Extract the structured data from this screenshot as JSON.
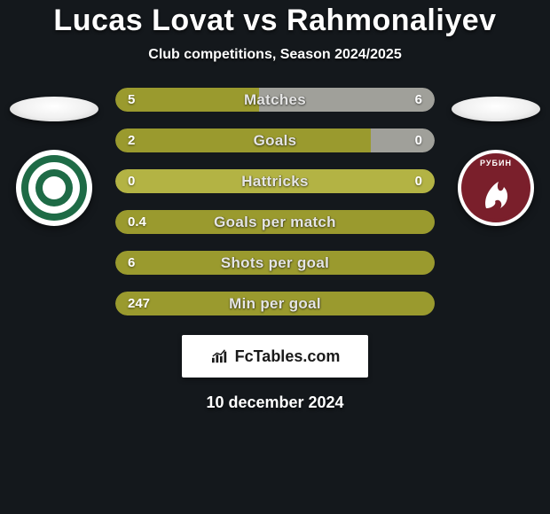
{
  "background_color": "#14181c",
  "title": "Lucas Lovat vs Rahmonaliyev",
  "title_fontsize": 34,
  "title_color": "#ffffff",
  "subtitle": "Club competitions, Season 2024/2025",
  "subtitle_fontsize": 16,
  "subtitle_color": "#ffffff",
  "left_badge": {
    "name": "Terek",
    "outer_color": "#ffffff",
    "ring_color": "#1e6b46"
  },
  "right_badge": {
    "name": "Rubin Kazan",
    "bg_color": "#7a1f2b",
    "border_color": "#ffffff",
    "text": "РУБИН"
  },
  "player_oval_color": "#f0f0f0",
  "bars": {
    "track_border_radius": 14,
    "height": 27,
    "label_color": "#e5e5e5",
    "value_color": "#ffffff",
    "colors": {
      "olive": "#9a9a2e",
      "olive_light": "#b3b344",
      "grey": "#a0a09a"
    },
    "rows": [
      {
        "key": "matches",
        "label": "Matches",
        "left_value": "5",
        "right_value": "6",
        "left_width_pct": 45,
        "right_width_pct": 55,
        "left_color": "#9a9a2e",
        "right_color": "#a0a09a"
      },
      {
        "key": "goals",
        "label": "Goals",
        "left_value": "2",
        "right_value": "0",
        "left_width_pct": 80,
        "right_width_pct": 20,
        "left_color": "#9a9a2e",
        "right_color": "#a0a09a"
      },
      {
        "key": "hattricks",
        "label": "Hattricks",
        "left_value": "0",
        "right_value": "0",
        "left_width_pct": 100,
        "right_width_pct": 0,
        "left_color": "#b3b344",
        "right_color": "#b3b344"
      },
      {
        "key": "gpm",
        "label": "Goals per match",
        "left_value": "0.4",
        "right_value": "",
        "left_width_pct": 100,
        "right_width_pct": 0,
        "left_color": "#9a9a2e",
        "right_color": "#9a9a2e"
      },
      {
        "key": "spg",
        "label": "Shots per goal",
        "left_value": "6",
        "right_value": "",
        "left_width_pct": 100,
        "right_width_pct": 0,
        "left_color": "#9a9a2e",
        "right_color": "#9a9a2e"
      },
      {
        "key": "mpg",
        "label": "Min per goal",
        "left_value": "247",
        "right_value": "",
        "left_width_pct": 100,
        "right_width_pct": 0,
        "left_color": "#9a9a2e",
        "right_color": "#9a9a2e"
      }
    ]
  },
  "footer_brand": "FcTables.com",
  "footer_brand_bg": "#ffffff",
  "footer_brand_text_color": "#1a1a1a",
  "footer_date": "10 december 2024",
  "footer_date_color": "#ffffff"
}
